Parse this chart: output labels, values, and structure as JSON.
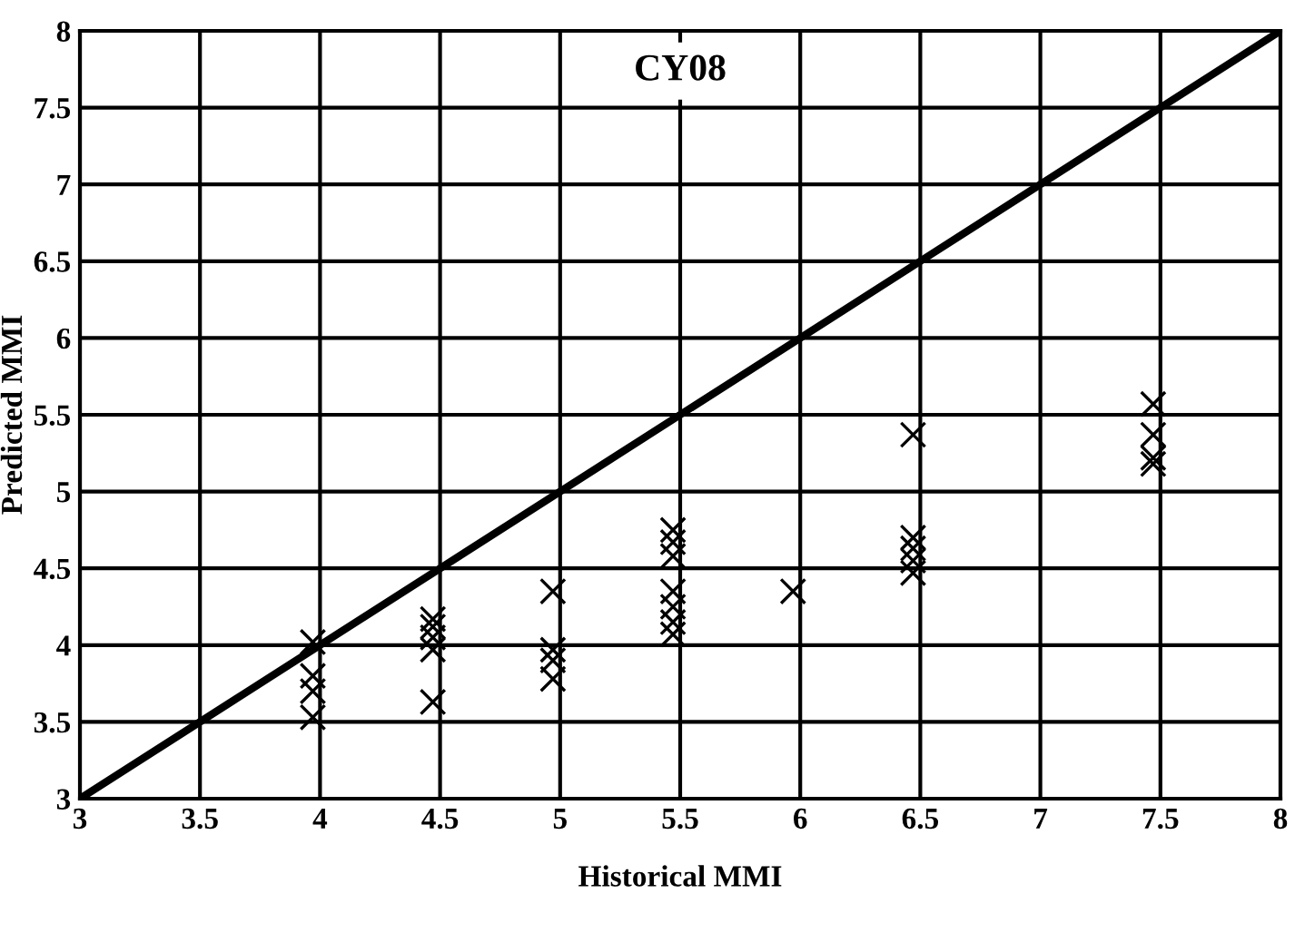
{
  "chart_data": {
    "type": "scatter",
    "title": "CY08",
    "xlabel": "Historical MMI",
    "ylabel": "Predicted MMI",
    "xlim": [
      3,
      8
    ],
    "ylim": [
      3,
      8
    ],
    "xticks": [
      3,
      3.5,
      4,
      4.5,
      5,
      5.5,
      6,
      6.5,
      7,
      7.5,
      8
    ],
    "yticks": [
      3,
      3.5,
      4,
      4.5,
      5,
      5.5,
      6,
      6.5,
      7,
      7.5,
      8
    ],
    "grid": true,
    "series": [
      {
        "marker": "cross",
        "color": "#000000",
        "x": [
          3.97,
          3.97,
          3.97,
          3.97,
          4.47,
          4.47,
          4.47,
          4.47,
          4.47,
          4.97,
          4.97,
          4.97,
          4.97,
          5.47,
          5.47,
          5.47,
          5.47,
          5.47,
          5.47,
          5.47,
          5.97,
          6.47,
          6.47,
          6.47,
          6.47,
          6.47,
          7.47,
          7.47,
          7.47,
          7.47
        ],
        "values": [
          4.02,
          3.8,
          3.7,
          3.53,
          4.17,
          4.12,
          4.05,
          3.97,
          3.63,
          4.35,
          3.97,
          3.9,
          3.78,
          4.75,
          4.67,
          4.58,
          4.35,
          4.25,
          4.15,
          4.07,
          4.35,
          5.37,
          4.7,
          4.63,
          4.55,
          4.47,
          5.57,
          5.37,
          5.22,
          5.18
        ]
      },
      {
        "type": "line",
        "marker": "none",
        "color": "#000000",
        "x": [
          3,
          8
        ],
        "values": [
          3,
          8
        ]
      }
    ]
  }
}
